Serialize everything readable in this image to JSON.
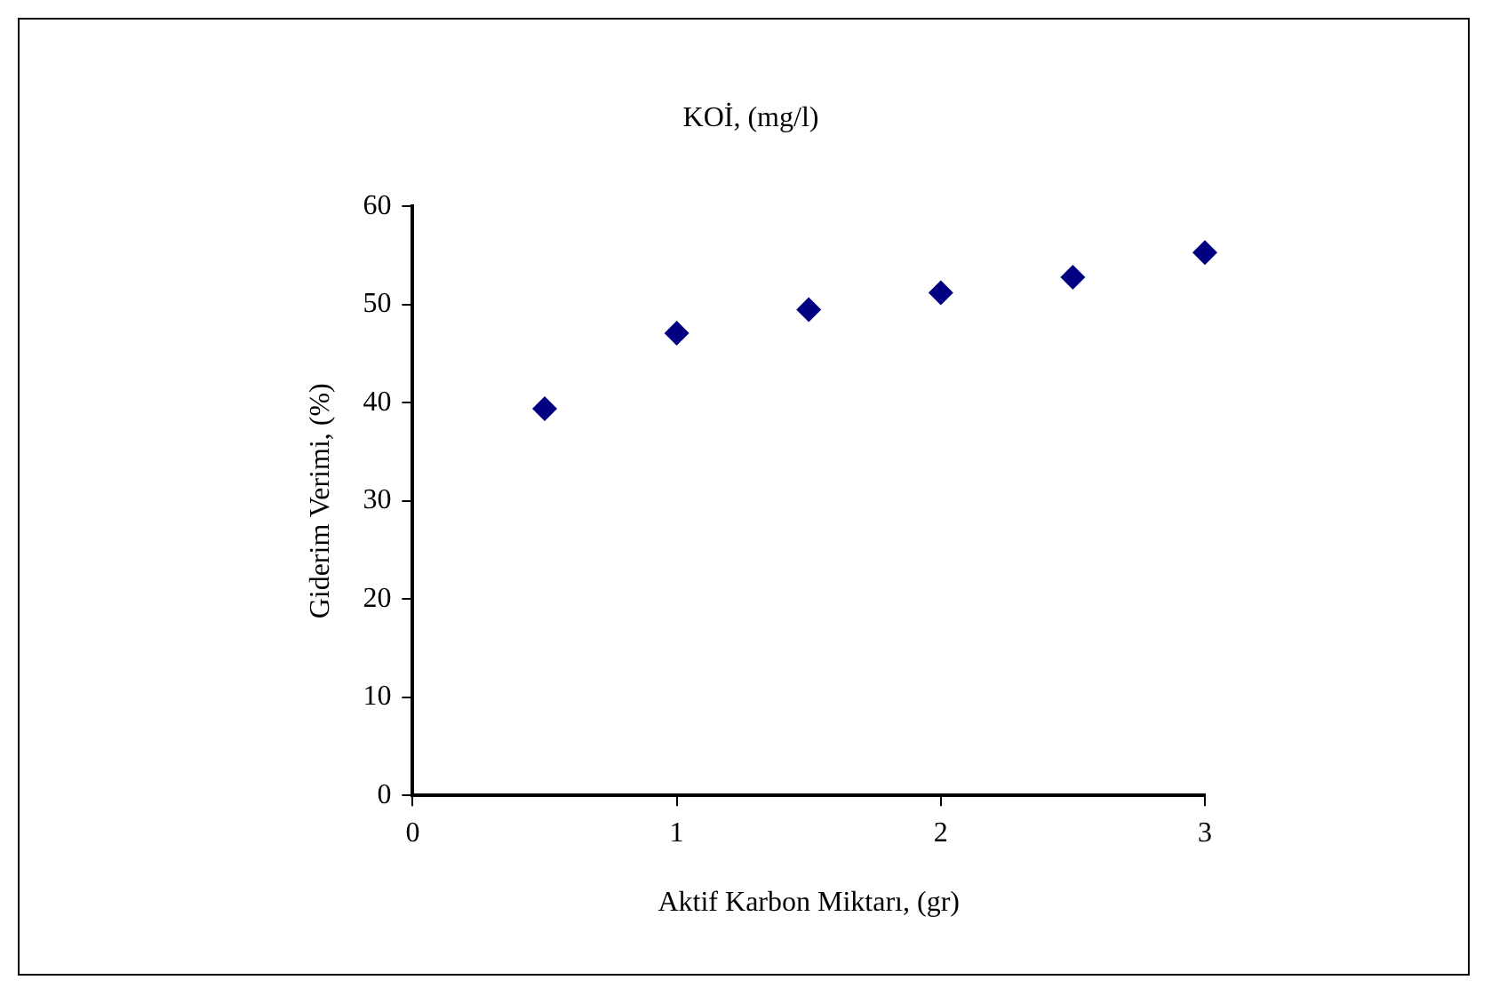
{
  "chart_data": {
    "type": "scatter",
    "title": "KOİ, (mg/l)",
    "xlabel": "Aktif Karbon Miktarı, (gr)",
    "ylabel": "Giderim Verimi, (%)",
    "x": [
      0.5,
      1,
      1.5,
      2,
      2.5,
      3
    ],
    "series": [
      {
        "color": "#000080",
        "values": [
          39.4,
          47.1,
          49.5,
          51.2,
          52.8,
          55.3
        ]
      }
    ],
    "xlim": [
      0,
      3
    ],
    "xticks": [
      0,
      1,
      2,
      3
    ],
    "ylim": [
      0,
      60
    ],
    "yticks": [
      0,
      10,
      20,
      30,
      40,
      50,
      60
    ],
    "grid": false,
    "legend": false,
    "marker": "diamond"
  }
}
